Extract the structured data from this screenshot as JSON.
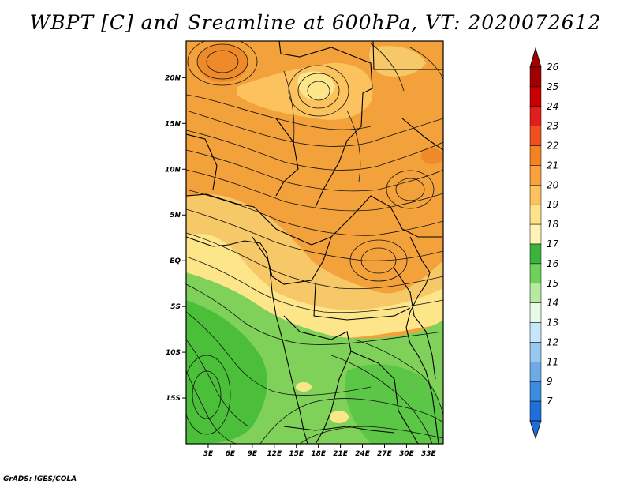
{
  "title": "WBPT [C] and Sreamline at 600hPa, VT: 2020072612",
  "credit": "GrADS: IGES/COLA",
  "map": {
    "variable": "Wet-bulb potential temperature",
    "units": "C",
    "level": "600hPa",
    "valid_time": "2020072612",
    "lon_range": [
      0,
      35
    ],
    "lat_range": [
      -20,
      24
    ],
    "lat_ticks": [
      {
        "value": 20,
        "label": "20N"
      },
      {
        "value": 15,
        "label": "15N"
      },
      {
        "value": 10,
        "label": "10N"
      },
      {
        "value": 5,
        "label": "5N"
      },
      {
        "value": 0,
        "label": "EQ"
      },
      {
        "value": -5,
        "label": "5S"
      },
      {
        "value": -10,
        "label": "10S"
      },
      {
        "value": -15,
        "label": "15S"
      }
    ],
    "lon_ticks": [
      {
        "value": 3,
        "label": "3E"
      },
      {
        "value": 6,
        "label": "6E"
      },
      {
        "value": 9,
        "label": "9E"
      },
      {
        "value": 12,
        "label": "12E"
      },
      {
        "value": 15,
        "label": "15E"
      },
      {
        "value": 18,
        "label": "18E"
      },
      {
        "value": 21,
        "label": "21E"
      },
      {
        "value": 24,
        "label": "24E"
      },
      {
        "value": 27,
        "label": "27E"
      },
      {
        "value": 30,
        "label": "30E"
      },
      {
        "value": 33,
        "label": "33E"
      }
    ],
    "field_regions": [
      {
        "range": "18-19",
        "color": "#fde68a"
      },
      {
        "range": "19-20",
        "color": "#f7c868"
      },
      {
        "range": "20-21",
        "color": "#f3a13b"
      },
      {
        "range": "21-22",
        "color": "#ef8a2a"
      },
      {
        "range": "17-18",
        "color": "#7fd15a"
      },
      {
        "range": "16-17",
        "color": "#4cbf3a"
      }
    ]
  },
  "colorbar": {
    "labels": [
      "26",
      "25",
      "24",
      "23",
      "22",
      "21",
      "20",
      "19",
      "18",
      "17",
      "16",
      "15",
      "14",
      "13",
      "12",
      "11",
      "9",
      "7"
    ],
    "colors": [
      "#a00000",
      "#c80000",
      "#e21e1e",
      "#f0501e",
      "#f58220",
      "#f9a13a",
      "#fbc25e",
      "#fde38a",
      "#fff4b4",
      "#3cb43c",
      "#6ed25a",
      "#b4eba0",
      "#e6fae6",
      "#c8e6fa",
      "#96c8f0",
      "#6eaae6",
      "#3c8ce0",
      "#1e6edc"
    ],
    "top_color": "#a00000",
    "bottom_color": "#1e6edc"
  }
}
